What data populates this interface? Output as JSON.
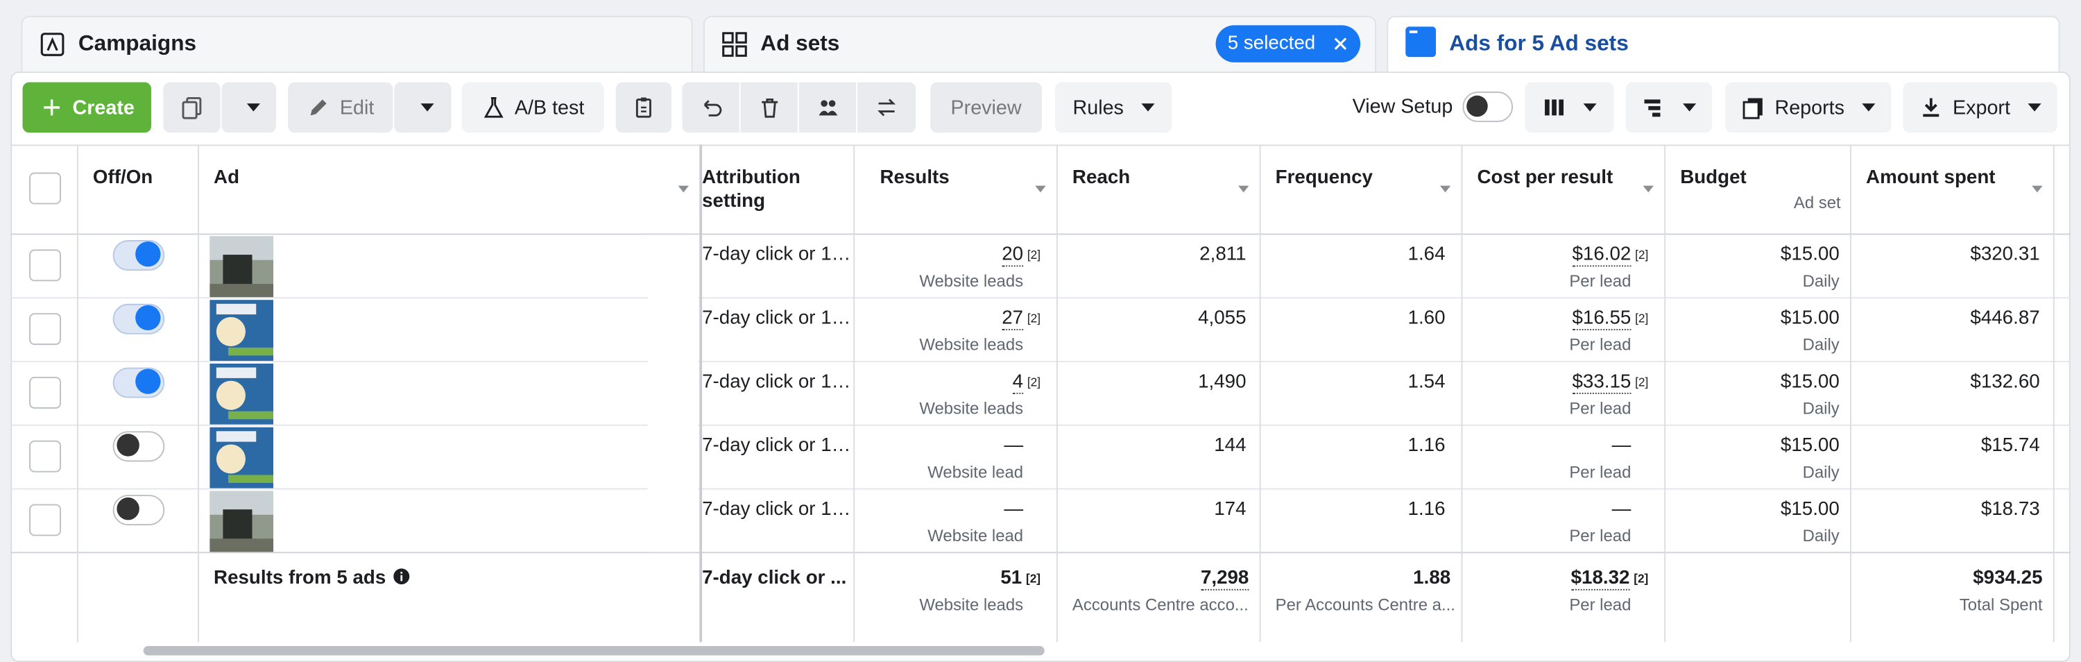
{
  "tabs": [
    {
      "label": "Campaigns"
    },
    {
      "label": "Ad sets",
      "badge": "5 selected"
    },
    {
      "label": "Ads for 5 Ad sets"
    }
  ],
  "toolbar": {
    "create": "Create",
    "edit": "Edit",
    "ab_test": "A/B test",
    "preview": "Preview",
    "rules": "Rules",
    "view_setup": "View Setup",
    "reports": "Reports",
    "export": "Export"
  },
  "table": {
    "columns": {
      "on_off": "Off/On",
      "ad": "Ad",
      "attribution": "Attribution setting",
      "results": "Results",
      "reach": "Reach",
      "frequency": "Frequency",
      "cost": "Cost per result",
      "budget": "Budget",
      "budget_sub": "Ad set",
      "spent": "Amount spent"
    },
    "rows": [
      {
        "on": true,
        "attribution": "7-day click or 1…",
        "results": "20",
        "results_note": "[2]",
        "results_sub": "Website leads",
        "reach": "2,811",
        "frequency": "1.64",
        "cost": "$16.02",
        "cost_note": "[2]",
        "cost_sub": "Per lead",
        "budget": "$15.00",
        "budget_sub": "Daily",
        "spent": "$320.31"
      },
      {
        "on": true,
        "attribution": "7-day click or 1…",
        "results": "27",
        "results_note": "[2]",
        "results_sub": "Website leads",
        "reach": "4,055",
        "frequency": "1.60",
        "cost": "$16.55",
        "cost_note": "[2]",
        "cost_sub": "Per lead",
        "budget": "$15.00",
        "budget_sub": "Daily",
        "spent": "$446.87"
      },
      {
        "on": true,
        "attribution": "7-day click or 1…",
        "results": "4",
        "results_note": "[2]",
        "results_sub": "Website leads",
        "reach": "1,490",
        "frequency": "1.54",
        "cost": "$33.15",
        "cost_note": "[2]",
        "cost_sub": "Per lead",
        "budget": "$15.00",
        "budget_sub": "Daily",
        "spent": "$132.60"
      },
      {
        "on": false,
        "attribution": "7-day click or 1…",
        "results": "—",
        "results_sub": "Website lead",
        "reach": "144",
        "frequency": "1.16",
        "cost": "—",
        "cost_sub": "Per lead",
        "budget": "$15.00",
        "budget_sub": "Daily",
        "spent": "$15.74"
      },
      {
        "on": false,
        "attribution": "7-day click or 1…",
        "results": "—",
        "results_sub": "Website lead",
        "reach": "174",
        "frequency": "1.16",
        "cost": "—",
        "cost_sub": "Per lead",
        "budget": "$15.00",
        "budget_sub": "Daily",
        "spent": "$18.73"
      }
    ],
    "footer": {
      "label": "Results from 5 ads",
      "attribution": "7-day click or ...",
      "results": "51",
      "results_note": "[2]",
      "results_sub": "Website leads",
      "reach": "7,298",
      "reach_sub": "Accounts Centre acco...",
      "frequency": "1.88",
      "frequency_sub": "Per Accounts Centre a...",
      "cost": "$18.32",
      "cost_note": "[2]",
      "cost_sub": "Per lead",
      "spent": "$934.25",
      "spent_sub": "Total Spent"
    }
  }
}
